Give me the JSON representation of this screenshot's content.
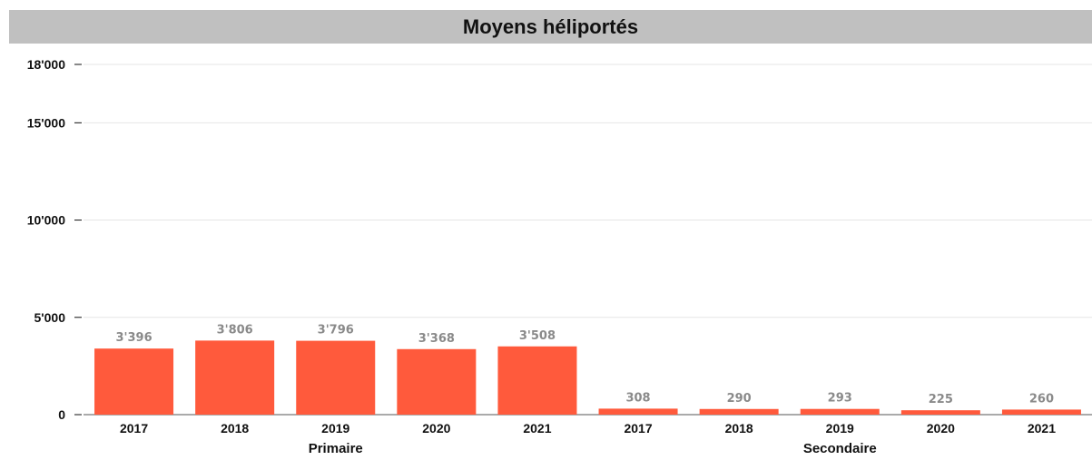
{
  "chart_data": {
    "type": "bar",
    "title": "Moyens héliportés",
    "xlabel": "",
    "ylabel": "",
    "ylim": [
      0,
      18000
    ],
    "yticks": [
      {
        "value": 0,
        "label": "0"
      },
      {
        "value": 5000,
        "label": "5'000"
      },
      {
        "value": 10000,
        "label": "10'000"
      },
      {
        "value": 15000,
        "label": "15'000"
      },
      {
        "value": 18000,
        "label": "18'000"
      }
    ],
    "grid": true,
    "bar_color": "#ff5a3c",
    "groups": [
      {
        "name": "Primaire",
        "categories": [
          "2017",
          "2018",
          "2019",
          "2020",
          "2021"
        ],
        "values": [
          3396,
          3806,
          3796,
          3368,
          3508
        ],
        "labels": [
          "3'396",
          "3'806",
          "3'796",
          "3'368",
          "3'508"
        ]
      },
      {
        "name": "Secondaire",
        "categories": [
          "2017",
          "2018",
          "2019",
          "2020",
          "2021"
        ],
        "values": [
          308,
          290,
          293,
          225,
          260
        ],
        "labels": [
          "308",
          "290",
          "293",
          "225",
          "260"
        ]
      }
    ]
  }
}
